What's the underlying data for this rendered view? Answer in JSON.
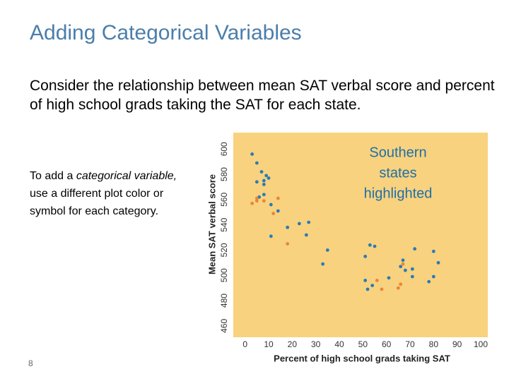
{
  "slide": {
    "title": "Adding Categorical Variables",
    "body": "Consider the relationship between mean SAT verbal score and percent of high school grads taking the SAT for each state.",
    "side_text": [
      "To add a ",
      "categorical variable,",
      " use a different plot color or symbol for each category."
    ],
    "page_number": "8"
  },
  "chart_data": {
    "type": "scatter",
    "x_label": "Percent of high school grads taking SAT",
    "y_label": "Mean SAT verbal score",
    "annotation": [
      "Southern",
      "states",
      "highlighted"
    ],
    "background": "#f8d27e",
    "xlim": [
      -5,
      103
    ],
    "ylim": [
      451,
      613
    ],
    "xticks": [
      0,
      10,
      20,
      30,
      40,
      50,
      60,
      70,
      80,
      90,
      100
    ],
    "yticks": [
      460,
      480,
      500,
      520,
      540,
      560,
      580,
      600
    ],
    "series": [
      {
        "color": "#2a7bb5",
        "x": [
          3,
          5,
          7,
          9,
          10,
          8,
          5,
          8,
          6,
          8,
          11,
          14,
          11,
          18,
          23,
          26,
          27,
          35,
          33,
          53,
          55,
          51,
          51,
          52,
          54,
          61,
          66,
          67,
          68,
          71,
          71,
          80,
          82,
          78,
          80,
          72
        ],
        "values": [
          596,
          589,
          582,
          579,
          577,
          575,
          574,
          572,
          562,
          564,
          556,
          551,
          531,
          538,
          541,
          532,
          542,
          520,
          509,
          524,
          523,
          515,
          496,
          489,
          492,
          498,
          507,
          512,
          504,
          505,
          499,
          519,
          510,
          495,
          499,
          521
        ]
      },
      {
        "color": "#e8863a",
        "x": [
          3,
          5,
          5,
          8,
          14,
          12,
          18,
          56,
          58,
          65,
          66,
          67
        ],
        "values": [
          557,
          559,
          561,
          559,
          561,
          549,
          525,
          496,
          489,
          490,
          493,
          509
        ]
      }
    ]
  }
}
